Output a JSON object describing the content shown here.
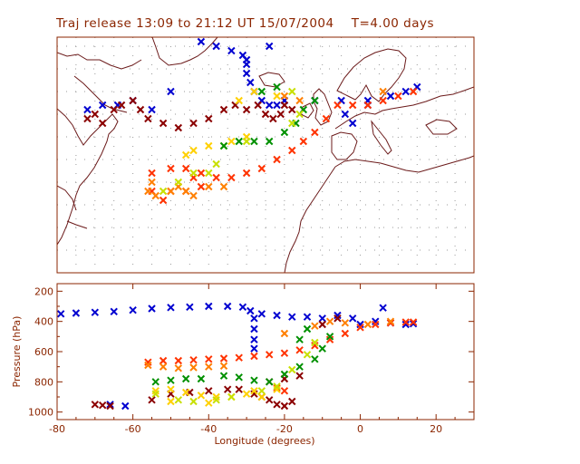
{
  "title": "Traj release 13:09 to 21:12 UT 15/07/2004    T=4.00 days",
  "colors": {
    "axis": "#8b2500",
    "grid": "#9a9a9a",
    "coast": "#6b1a1a",
    "series": [
      "#0000d0",
      "#8b0000",
      "#ff3300",
      "#ffd000",
      "#009000",
      "#ff7f00",
      "#c8e000",
      "#b00000"
    ]
  },
  "chart_data": [
    {
      "type": "scatter",
      "title": "Traj release 13:09 to 21:12 UT 15/07/2004    T=4.00 days",
      "subtype": "map",
      "xlim": [
        -80,
        30
      ],
      "ylim": [
        20,
        72
      ],
      "grid": true,
      "series": [
        {
          "color": "#0000d0",
          "points": [
            [
              -42,
              71
            ],
            [
              -38,
              70
            ],
            [
              -34,
              69
            ],
            [
              -31,
              68
            ],
            [
              -30,
              66
            ],
            [
              -30,
              64
            ],
            [
              -29,
              62
            ],
            [
              -28,
              60
            ],
            [
              -26,
              58
            ],
            [
              -24,
              57
            ],
            [
              -22,
              57
            ],
            [
              -20,
              58
            ],
            [
              -12,
              58
            ],
            [
              -5,
              58
            ],
            [
              2,
              58
            ],
            [
              8,
              59
            ],
            [
              12,
              60
            ],
            [
              15,
              61
            ],
            [
              -4,
              55
            ],
            [
              -2,
              53
            ],
            [
              2,
              57
            ],
            [
              -72,
              56
            ],
            [
              -68,
              57
            ],
            [
              -64,
              57
            ],
            [
              -60,
              58
            ],
            [
              -55,
              56
            ],
            [
              -50,
              60
            ],
            [
              -30,
              67
            ],
            [
              -24,
              70
            ]
          ]
        },
        {
          "color": "#8b0000",
          "points": [
            [
              -72,
              54
            ],
            [
              -70,
              55
            ],
            [
              -68,
              53
            ],
            [
              -65,
              56
            ],
            [
              -63,
              57
            ],
            [
              -60,
              58
            ],
            [
              -58,
              56
            ],
            [
              -56,
              54
            ],
            [
              -52,
              53
            ],
            [
              -48,
              52
            ],
            [
              -44,
              53
            ],
            [
              -40,
              54
            ],
            [
              -36,
              56
            ],
            [
              -33,
              57
            ],
            [
              -30,
              56
            ],
            [
              -27,
              57
            ],
            [
              -25,
              55
            ],
            [
              -23,
              54
            ],
            [
              -21,
              55
            ],
            [
              -20,
              57
            ],
            [
              -18,
              56
            ]
          ]
        },
        {
          "color": "#ff3300",
          "points": [
            [
              -55,
              42
            ],
            [
              -50,
              43
            ],
            [
              -46,
              43
            ],
            [
              -42,
              42
            ],
            [
              -38,
              41
            ],
            [
              -34,
              41
            ],
            [
              -30,
              42
            ],
            [
              -26,
              43
            ],
            [
              -22,
              45
            ],
            [
              -18,
              47
            ],
            [
              -15,
              49
            ],
            [
              -12,
              51
            ],
            [
              -9,
              54
            ],
            [
              -6,
              57
            ],
            [
              -2,
              57
            ],
            [
              2,
              57
            ],
            [
              6,
              58
            ],
            [
              10,
              59
            ],
            [
              14,
              60
            ],
            [
              -50,
              38
            ],
            [
              -55,
              38
            ],
            [
              -52,
              36
            ],
            [
              -46,
              38
            ],
            [
              -42,
              39
            ],
            [
              -44,
              41
            ]
          ]
        },
        {
          "color": "#ffd000",
          "points": [
            [
              -46,
              46
            ],
            [
              -44,
              47
            ],
            [
              -40,
              48
            ],
            [
              -36,
              48
            ],
            [
              -34,
              49
            ],
            [
              -30,
              50
            ],
            [
              -32,
              58
            ],
            [
              -28,
              60
            ],
            [
              -22,
              59
            ]
          ]
        },
        {
          "color": "#009000",
          "points": [
            [
              -36,
              48
            ],
            [
              -32,
              49
            ],
            [
              -28,
              49
            ],
            [
              -24,
              49
            ],
            [
              -20,
              51
            ],
            [
              -17,
              53
            ],
            [
              -15,
              56
            ],
            [
              -12,
              58
            ],
            [
              -26,
              60
            ],
            [
              -22,
              61
            ]
          ]
        },
        {
          "color": "#ff7f00",
          "points": [
            [
              -55,
              40
            ],
            [
              -56,
              38
            ],
            [
              -54,
              37
            ],
            [
              -50,
              38
            ],
            [
              -48,
              39
            ],
            [
              -46,
              38
            ],
            [
              -44,
              37
            ],
            [
              -40,
              39
            ],
            [
              -36,
              39
            ],
            [
              -20,
              59
            ],
            [
              -16,
              58
            ],
            [
              6,
              60
            ]
          ]
        },
        {
          "color": "#c8e000",
          "points": [
            [
              -52,
              38
            ],
            [
              -48,
              40
            ],
            [
              -44,
              42
            ],
            [
              -40,
              42
            ],
            [
              -38,
              44
            ],
            [
              -30,
              49
            ],
            [
              -18,
              53
            ],
            [
              -16,
              55
            ],
            [
              -18,
              60
            ]
          ]
        }
      ]
    },
    {
      "type": "scatter",
      "xlabel": "Longitude  (degrees)",
      "ylabel": "Pressure  (hPa)",
      "xlim": [
        -80,
        30
      ],
      "ylim": [
        1050,
        150
      ],
      "xticks": [
        -80,
        -60,
        -40,
        -20,
        0,
        20
      ],
      "yticks": [
        200,
        400,
        600,
        800,
        1000
      ],
      "series": [
        {
          "color": "#0000d0",
          "points": [
            [
              -79,
              350
            ],
            [
              -75,
              345
            ],
            [
              -70,
              340
            ],
            [
              -65,
              335
            ],
            [
              -60,
              325
            ],
            [
              -55,
              315
            ],
            [
              -50,
              308
            ],
            [
              -45,
              305
            ],
            [
              -40,
              300
            ],
            [
              -35,
              300
            ],
            [
              -31,
              305
            ],
            [
              -29,
              330
            ],
            [
              -28,
              380
            ],
            [
              -28,
              450
            ],
            [
              -28,
              520
            ],
            [
              -28,
              580
            ],
            [
              -26,
              350
            ],
            [
              -22,
              360
            ],
            [
              -18,
              370
            ],
            [
              -14,
              370
            ],
            [
              -10,
              380
            ],
            [
              -6,
              360
            ],
            [
              -2,
              380
            ],
            [
              0,
              420
            ],
            [
              4,
              400
            ],
            [
              8,
              410
            ],
            [
              12,
              420
            ],
            [
              14,
              415
            ],
            [
              6,
              310
            ],
            [
              -66,
              950
            ],
            [
              -62,
              960
            ]
          ]
        },
        {
          "color": "#8b0000",
          "points": [
            [
              -70,
              950
            ],
            [
              -68,
              955
            ],
            [
              -66,
              960
            ],
            [
              -55,
              920
            ],
            [
              -50,
              880
            ],
            [
              -45,
              870
            ],
            [
              -40,
              860
            ],
            [
              -35,
              850
            ],
            [
              -32,
              850
            ],
            [
              -28,
              880
            ],
            [
              -26,
              900
            ],
            [
              -24,
              920
            ],
            [
              -22,
              950
            ],
            [
              -20,
              960
            ],
            [
              -18,
              930
            ],
            [
              -24,
              800
            ],
            [
              -20,
              780
            ],
            [
              -16,
              760
            ],
            [
              -10,
              420
            ],
            [
              -6,
              380
            ]
          ]
        },
        {
          "color": "#ff3300",
          "points": [
            [
              -56,
              670
            ],
            [
              -52,
              660
            ],
            [
              -48,
              660
            ],
            [
              -44,
              655
            ],
            [
              -40,
              650
            ],
            [
              -36,
              645
            ],
            [
              -32,
              640
            ],
            [
              -28,
              630
            ],
            [
              -24,
              620
            ],
            [
              -20,
              610
            ],
            [
              -16,
              590
            ],
            [
              -12,
              560
            ],
            [
              -8,
              520
            ],
            [
              -4,
              480
            ],
            [
              0,
              440
            ],
            [
              4,
              420
            ],
            [
              8,
              410
            ],
            [
              12,
              405
            ],
            [
              14,
              405
            ],
            [
              -22,
              840
            ],
            [
              -20,
              860
            ]
          ]
        },
        {
          "color": "#ffd000",
          "points": [
            [
              -54,
              860
            ],
            [
              -50,
              850
            ],
            [
              -46,
              870
            ],
            [
              -42,
              890
            ],
            [
              -38,
              900
            ],
            [
              -34,
              900
            ],
            [
              -30,
              880
            ],
            [
              -28,
              860
            ],
            [
              -26,
              900
            ],
            [
              -22,
              850
            ],
            [
              -50,
              930
            ],
            [
              -40,
              940
            ]
          ]
        },
        {
          "color": "#009000",
          "points": [
            [
              -54,
              800
            ],
            [
              -50,
              790
            ],
            [
              -46,
              780
            ],
            [
              -42,
              780
            ],
            [
              -36,
              760
            ],
            [
              -32,
              770
            ],
            [
              -28,
              790
            ],
            [
              -24,
              800
            ],
            [
              -20,
              750
            ],
            [
              -16,
              700
            ],
            [
              -12,
              650
            ],
            [
              -10,
              580
            ],
            [
              -8,
              500
            ],
            [
              -14,
              450
            ],
            [
              -16,
              520
            ]
          ]
        },
        {
          "color": "#ff7f00",
          "points": [
            [
              -56,
              690
            ],
            [
              -52,
              700
            ],
            [
              -48,
              710
            ],
            [
              -44,
              705
            ],
            [
              -40,
              700
            ],
            [
              -36,
              695
            ],
            [
              -20,
              480
            ],
            [
              -12,
              430
            ],
            [
              -8,
              400
            ],
            [
              -4,
              410
            ],
            [
              2,
              420
            ],
            [
              8,
              400
            ]
          ]
        },
        {
          "color": "#c8e000",
          "points": [
            [
              -54,
              880
            ],
            [
              -48,
              920
            ],
            [
              -44,
              930
            ],
            [
              -38,
              920
            ],
            [
              -34,
              900
            ],
            [
              -26,
              860
            ],
            [
              -22,
              830
            ],
            [
              -18,
              720
            ],
            [
              -14,
              620
            ],
            [
              -12,
              540
            ]
          ]
        }
      ]
    }
  ]
}
